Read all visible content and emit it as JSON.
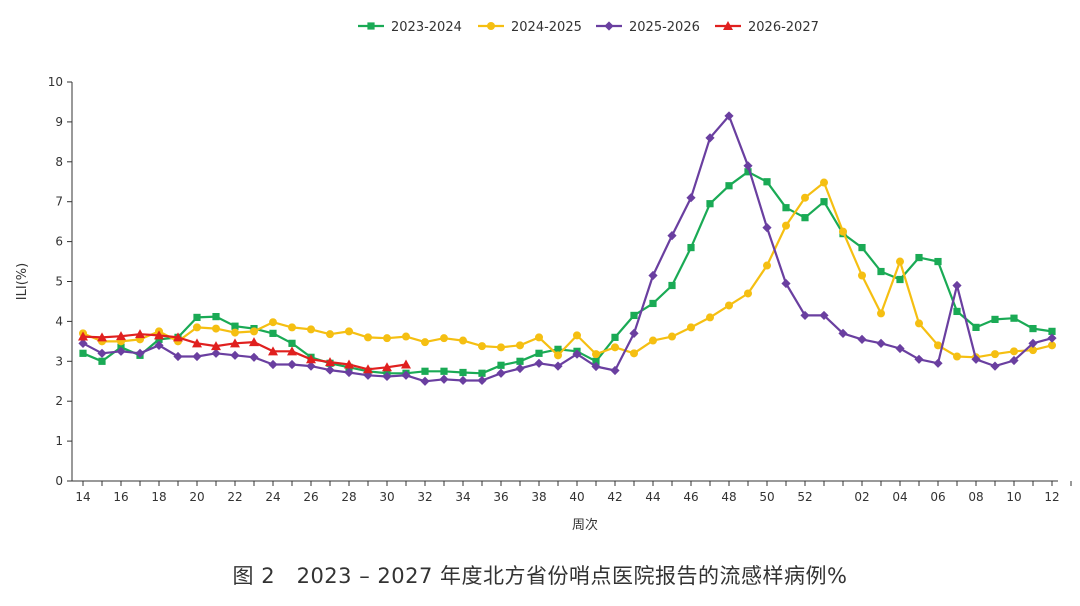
{
  "caption": "图 2　2023 – 2027 年度北方省份哨点医院报告的流感样病例%",
  "chart_data": {
    "type": "line",
    "ylabel": "ILI(%)",
    "xlabel": "周次",
    "ylim": [
      0,
      10
    ],
    "yticks": [
      0,
      1,
      2,
      3,
      4,
      5,
      6,
      7,
      8,
      9,
      10
    ],
    "grid": false,
    "legend_position": "top",
    "categories": [
      "14",
      "15",
      "16",
      "17",
      "18",
      "19",
      "20",
      "21",
      "22",
      "23",
      "24",
      "25",
      "26",
      "27",
      "28",
      "29",
      "30",
      "31",
      "32",
      "33",
      "34",
      "35",
      "36",
      "37",
      "38",
      "39",
      "40",
      "41",
      "42",
      "43",
      "44",
      "45",
      "46",
      "47",
      "48",
      "49",
      "50",
      "51",
      "52",
      "53",
      "01",
      "02",
      "03",
      "04",
      "05",
      "06",
      "07",
      "08",
      "09",
      "10",
      "11",
      "12",
      "13"
    ],
    "tick_labels": [
      "14",
      "16",
      "18",
      "20",
      "22",
      "24",
      "26",
      "28",
      "30",
      "32",
      "34",
      "36",
      "38",
      "40",
      "42",
      "44",
      "46",
      "48",
      "50",
      "52",
      "02",
      "04",
      "06",
      "08",
      "10",
      "12"
    ],
    "series": [
      {
        "name": "2023-2024",
        "color": "#1aaa55",
        "marker": "square",
        "values": [
          3.2,
          3.0,
          3.35,
          3.15,
          3.55,
          3.6,
          4.1,
          4.12,
          3.88,
          3.82,
          3.7,
          3.45,
          3.1,
          2.95,
          2.85,
          2.75,
          2.7,
          2.7,
          2.75,
          2.75,
          2.72,
          2.7,
          2.9,
          3.0,
          3.2,
          3.3,
          3.25,
          3.0,
          3.6,
          4.15,
          4.45,
          4.9,
          5.85,
          6.95,
          7.4,
          7.75,
          7.5,
          6.85,
          6.6,
          7.0,
          6.2,
          5.85,
          5.25,
          5.05,
          5.6,
          5.5,
          4.25,
          3.85,
          4.05,
          4.08,
          3.82,
          3.75,
          null
        ]
      },
      {
        "name": "2024-2025",
        "color": "#f5bf12",
        "marker": "circle",
        "values": [
          3.7,
          3.5,
          3.5,
          3.55,
          3.75,
          3.5,
          3.85,
          3.82,
          3.72,
          3.75,
          3.98,
          3.85,
          3.8,
          3.68,
          3.75,
          3.6,
          3.58,
          3.62,
          3.48,
          3.58,
          3.52,
          3.38,
          3.35,
          3.4,
          3.6,
          3.15,
          3.65,
          3.18,
          3.35,
          3.2,
          3.52,
          3.62,
          3.85,
          4.1,
          4.4,
          4.7,
          5.4,
          6.4,
          7.1,
          7.48,
          6.25,
          5.15,
          4.2,
          5.5,
          3.95,
          3.4,
          3.12,
          3.1,
          3.18,
          3.25,
          3.28,
          3.4,
          null
        ]
      },
      {
        "name": "2025-2026",
        "color": "#6a3fa0",
        "marker": "diamond",
        "values": [
          3.45,
          3.2,
          3.25,
          3.2,
          3.4,
          3.12,
          3.12,
          3.2,
          3.15,
          3.1,
          2.92,
          2.92,
          2.88,
          2.78,
          2.72,
          2.65,
          2.62,
          2.65,
          2.5,
          2.55,
          2.52,
          2.52,
          2.7,
          2.82,
          2.95,
          2.88,
          3.18,
          2.87,
          2.77,
          3.7,
          5.15,
          6.15,
          7.1,
          8.6,
          9.15,
          7.9,
          6.35,
          4.95,
          4.15,
          4.15,
          3.7,
          3.55,
          3.45,
          3.32,
          3.05,
          2.95,
          4.9,
          3.05,
          2.88,
          3.02,
          3.45,
          3.58,
          null
        ]
      },
      {
        "name": "2026-2027",
        "color": "#e0201f",
        "marker": "triangle",
        "values": [
          3.62,
          3.6,
          3.63,
          3.68,
          3.65,
          3.6,
          3.45,
          3.38,
          3.45,
          3.48,
          3.25,
          3.25,
          3.05,
          2.98,
          2.92,
          2.8,
          2.85,
          2.92,
          null,
          null,
          null,
          null,
          null,
          null,
          null,
          null,
          null,
          null,
          null,
          null,
          null,
          null,
          null,
          null,
          null,
          null,
          null,
          null,
          null,
          null,
          null,
          null,
          null,
          null,
          null,
          null,
          null,
          null,
          null,
          null,
          null,
          null,
          null
        ]
      }
    ]
  }
}
